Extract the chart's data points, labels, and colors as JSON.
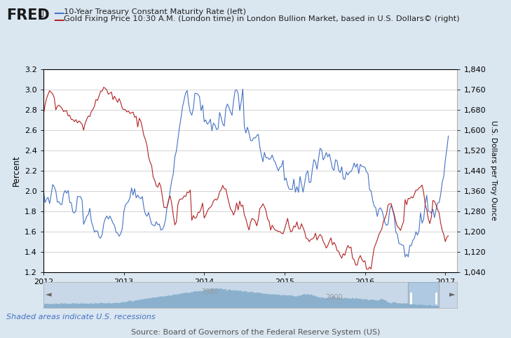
{
  "title_line1": "10-Year Treasury Constant Maturity Rate (left)",
  "title_line2": "Gold Fixing Price 10:30 A.M. (London time) in London Bullion Market, based in U.S. Dollars© (right)",
  "fred_label": "FRED",
  "ylabel_left": "Percent",
  "ylabel_right": "U.S. Dollars per Troy Ounce",
  "source_text": "Source: Board of Governors of the Federal Reserve System (US)",
  "shaded_text": "Shaded areas indicate U.S. recessions",
  "ylim_left": [
    1.2,
    3.2
  ],
  "ylim_right": [
    1040,
    1840
  ],
  "yticks_left": [
    1.2,
    1.4,
    1.6,
    1.8,
    2.0,
    2.2,
    2.4,
    2.6,
    2.8,
    3.0,
    3.2
  ],
  "yticks_right": [
    1040,
    1120,
    1200,
    1280,
    1360,
    1440,
    1520,
    1600,
    1680,
    1760,
    1840
  ],
  "background_color": "#dae6f0",
  "plot_bg_color": "#ffffff",
  "blue_color": "#4472c4",
  "red_color": "#b22222",
  "grid_color": "#cccccc",
  "nav_bg": "#c8d8e8",
  "nav_fill": "#7ba7c7",
  "xlim": [
    2012.0,
    2017.15
  ],
  "xtick_years": [
    2012,
    2013,
    2014,
    2015,
    2016,
    2017
  ]
}
